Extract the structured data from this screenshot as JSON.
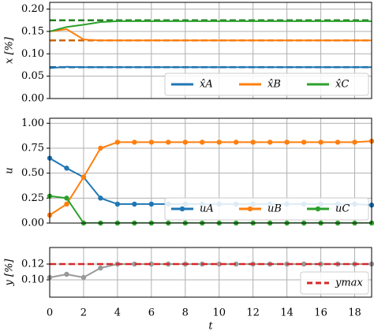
{
  "chart_data": [
    {
      "type": "line",
      "y_label": "x [%]",
      "x": [
        0,
        1,
        2,
        3,
        4,
        5,
        6,
        7,
        8,
        9,
        10,
        11,
        12,
        13,
        14,
        15,
        16,
        17,
        18,
        19
      ],
      "xlim": [
        0,
        19
      ],
      "ylim": [
        0,
        0.215
      ],
      "yticks": [
        {
          "value": 0,
          "label": "0.00"
        },
        {
          "value": 0.05,
          "label": "0.05"
        },
        {
          "value": 0.1,
          "label": "0.10"
        },
        {
          "value": 0.15,
          "label": "0.15"
        },
        {
          "value": 0.2,
          "label": "0.20"
        }
      ],
      "grid": true,
      "legend": "lower right",
      "series": [
        {
          "name": "x̂A",
          "color": "#1f77b4",
          "true_value": 0.07,
          "values": [
            0.068,
            0.071,
            0.07,
            0.07,
            0.07,
            0.07,
            0.07,
            0.07,
            0.07,
            0.07,
            0.07,
            0.07,
            0.07,
            0.07,
            0.07,
            0.07,
            0.07,
            0.07,
            0.07,
            0.07
          ]
        },
        {
          "name": "x̂B",
          "color": "#ff7f0e",
          "true_value": 0.13,
          "values": [
            0.15,
            0.155,
            0.132,
            0.13,
            0.13,
            0.13,
            0.13,
            0.13,
            0.13,
            0.13,
            0.13,
            0.13,
            0.13,
            0.13,
            0.13,
            0.13,
            0.13,
            0.13,
            0.13,
            0.13
          ]
        },
        {
          "name": "x̂C",
          "color": "#2ca02c",
          "true_value": 0.175,
          "values": [
            0.15,
            0.16,
            0.165,
            0.171,
            0.173,
            0.173,
            0.173,
            0.173,
            0.173,
            0.173,
            0.173,
            0.173,
            0.173,
            0.173,
            0.173,
            0.173,
            0.173,
            0.173,
            0.173,
            0.173
          ]
        }
      ]
    },
    {
      "type": "line",
      "y_label": "u",
      "x": [
        0,
        1,
        2,
        3,
        4,
        5,
        6,
        7,
        8,
        9,
        10,
        11,
        12,
        13,
        14,
        15,
        16,
        17,
        18,
        19
      ],
      "xlim": [
        0,
        19
      ],
      "ylim": [
        0,
        1.05
      ],
      "yticks": [
        {
          "value": 0,
          "label": "0.00"
        },
        {
          "value": 0.25,
          "label": "0.25"
        },
        {
          "value": 0.5,
          "label": "0.50"
        },
        {
          "value": 0.75,
          "label": "0.75"
        },
        {
          "value": 1,
          "label": "1.00"
        }
      ],
      "grid": true,
      "legend": "lower right",
      "markers": true,
      "series": [
        {
          "name": "uA",
          "color": "#1f77b4",
          "values": [
            0.65,
            0.55,
            0.46,
            0.25,
            0.19,
            0.19,
            0.19,
            0.19,
            0.19,
            0.19,
            0.19,
            0.19,
            0.19,
            0.19,
            0.19,
            0.19,
            0.19,
            0.19,
            0.19,
            0.18
          ]
        },
        {
          "name": "uB",
          "color": "#ff7f0e",
          "values": [
            0.08,
            0.19,
            0.46,
            0.75,
            0.81,
            0.81,
            0.81,
            0.81,
            0.81,
            0.81,
            0.81,
            0.81,
            0.81,
            0.81,
            0.81,
            0.81,
            0.81,
            0.81,
            0.81,
            0.82
          ]
        },
        {
          "name": "uC",
          "color": "#2ca02c",
          "values": [
            0.27,
            0.25,
            0,
            0,
            0,
            0,
            0,
            0,
            0,
            0,
            0,
            0,
            0,
            0,
            0,
            0,
            0,
            0,
            0,
            0
          ]
        }
      ]
    },
    {
      "type": "line",
      "y_label": "y [%]",
      "x_label": "t",
      "x": [
        0,
        1,
        2,
        3,
        4,
        5,
        6,
        7,
        8,
        9,
        10,
        11,
        12,
        13,
        14,
        15,
        16,
        17,
        18,
        19
      ],
      "xlim": [
        0,
        19
      ],
      "ylim": [
        0.078,
        0.141
      ],
      "xticks": [
        0,
        2,
        4,
        6,
        8,
        10,
        12,
        14,
        16,
        18
      ],
      "yticks": [
        {
          "value": 0.1,
          "label": "0.10"
        },
        {
          "value": 0.12,
          "label": "0.12"
        }
      ],
      "grid": true,
      "legend": "lower right",
      "markers": true,
      "series": [
        {
          "color": "#999999",
          "values": [
            0.103,
            0.107,
            0.103,
            0.115,
            0.12,
            0.12,
            0.12,
            0.12,
            0.12,
            0.12,
            0.12,
            0.12,
            0.12,
            0.12,
            0.12,
            0.12,
            0.12,
            0.12,
            0.12,
            0.12
          ]
        },
        {
          "name": "ymax",
          "color": "#d62728",
          "reference": 0.12
        }
      ]
    }
  ]
}
